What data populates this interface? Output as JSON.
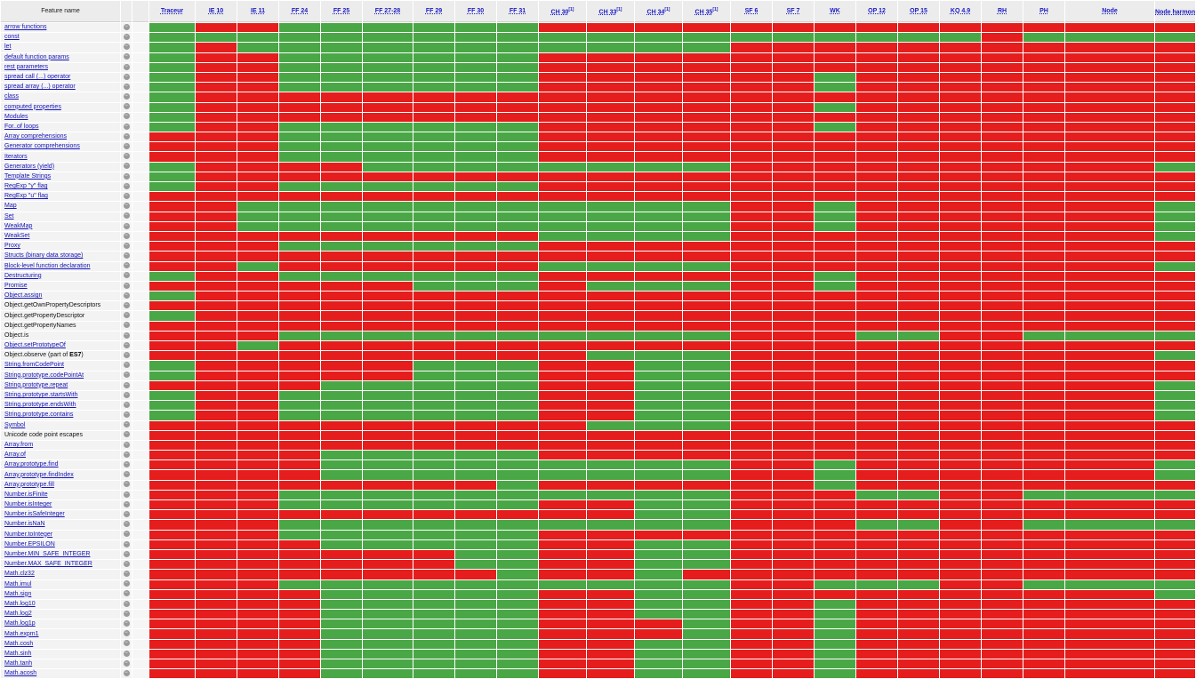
{
  "header": {
    "feature_column": "Feature name",
    "columns": [
      {
        "label": "Traceur",
        "note": ""
      },
      {
        "label": "IE 10",
        "note": ""
      },
      {
        "label": "IE 11",
        "note": ""
      },
      {
        "label": "FF 24",
        "note": ""
      },
      {
        "label": "FF 25",
        "note": ""
      },
      {
        "label": "FF 27-28",
        "note": ""
      },
      {
        "label": "FF 29",
        "note": ""
      },
      {
        "label": "FF 30",
        "note": ""
      },
      {
        "label": "FF 31",
        "note": ""
      },
      {
        "label": "CH 30",
        "note": "[1]"
      },
      {
        "label": "CH 33",
        "note": "[1]"
      },
      {
        "label": "CH 34",
        "note": "[1]"
      },
      {
        "label": "CH 35",
        "note": "[1]"
      },
      {
        "label": "SF 6",
        "note": ""
      },
      {
        "label": "SF 7",
        "note": ""
      },
      {
        "label": "WK",
        "note": ""
      },
      {
        "label": "OP 12",
        "note": ""
      },
      {
        "label": "OP 15",
        "note": ""
      },
      {
        "label": "KQ 4.9",
        "note": ""
      },
      {
        "label": "RH",
        "note": ""
      },
      {
        "label": "PH",
        "note": ""
      },
      {
        "label": "Node",
        "note": ""
      },
      {
        "label": "Node harmony",
        "note": "[2]"
      }
    ]
  },
  "info_icon": "info-circle-icon",
  "colors": {
    "supported": "#4aa746",
    "unsupported": "#e51d1d"
  },
  "rows": [
    {
      "name": "arrow functions",
      "link": true,
      "cells": "ynnyyyyyynnnnnnnnnnnnnn"
    },
    {
      "name": "const",
      "link": true,
      "cells": "yyyyyyyyyyyyyyyyyyynyyy"
    },
    {
      "name": "let",
      "link": true,
      "cells": "ynyyyyyyyyyyynnnnnnnnnn"
    },
    {
      "name": "default function params",
      "link": true,
      "cells": "ynnyyyyyynnnnnnnnnnnnnn"
    },
    {
      "name": "rest parameters",
      "link": true,
      "cells": "ynnyyyyyynnnnnnnnnnnnnn"
    },
    {
      "name": "spread call (...) operator",
      "link": true,
      "cells": "ynnyyyyyynnnnnnynnnnnnn"
    },
    {
      "name": "spread array (...) operator",
      "link": true,
      "cells": "ynnyyyyyynnnnnnynnnnnnn"
    },
    {
      "name": "class",
      "link": true,
      "cells": "ynnnnnnnnnnnnnnnnnnnnnn"
    },
    {
      "name": "computed properties",
      "link": true,
      "cells": "ynnnnnnnnnnnnnnynnnnnnn"
    },
    {
      "name": "Modules",
      "link": true,
      "cells": "ynnnnnnnnnnnnnnnnnnnnnn"
    },
    {
      "name": "For..of loops",
      "link": true,
      "cells": "ynnyyyyyynnnnnnynnnnnnn"
    },
    {
      "name": "Array comprehensions",
      "link": true,
      "cells": "nnnyyyyyynnnnnnnnnnnnnn"
    },
    {
      "name": "Generator comprehensions",
      "link": true,
      "cells": "nnnyyyyyynnnnnnnnnnnnnn"
    },
    {
      "name": "Iterators",
      "link": true,
      "cells": "nnnyyyyyynnnnnnnnnnnnnn"
    },
    {
      "name": "Generators (yield)",
      "link": true,
      "cells": "ynnnnyyyyyyyynnnnnnnnny"
    },
    {
      "name": "Template Strings",
      "link": true,
      "cells": "ynnnnnnnnnnnnnnnnnnnnnn"
    },
    {
      "name": "RegExp \"y\" flag",
      "link": true,
      "cells": "ynnyyyyyynnnnnnnnnnnnnn"
    },
    {
      "name": "RegExp \"u\" flag",
      "link": true,
      "cells": "nnnnnnnnnnnnnnnnnnnnnnn"
    },
    {
      "name": "Map",
      "link": true,
      "cells": "nnyyyyyyyyyyynnynnnnnny"
    },
    {
      "name": "Set",
      "link": true,
      "cells": "nnyyyyyyyyyyynnynnnnnny"
    },
    {
      "name": "WeakMap",
      "link": true,
      "cells": "nnyyyyyyyyyyynnynnnnnny"
    },
    {
      "name": "WeakSet",
      "link": true,
      "cells": "nnnnnnnnnyyyynnnnnnnnny"
    },
    {
      "name": "Proxy",
      "link": true,
      "cells": "nnnyyyyyynnnnnnnnnnnnnn"
    },
    {
      "name": "Structs (binary data storage)",
      "link": true,
      "cells": "nnnnnnnnnnnnnnnnnnnnnnn"
    },
    {
      "name": "Block-level function declaration",
      "link": true,
      "cells": "nnynnnnnnyyyynnnnnnnnny"
    },
    {
      "name": "Destructuring",
      "link": true,
      "cells": "ynnyyyyyynnnnnnynnnnnnn"
    },
    {
      "name": "Promise",
      "link": true,
      "cells": "nnnnnnyyynyyynnynnnnnnn"
    },
    {
      "name": "Object.assign",
      "link": true,
      "cells": "ynnnnnnnnnnnnnnnnnnnnnn"
    },
    {
      "name": "Object.getOwnPropertyDescriptors",
      "link": false,
      "cells": "nnnnnnnnnnnnnnnnnnnnnnn"
    },
    {
      "name": "Object.getPropertyDescriptor",
      "link": false,
      "cells": "ynnnnnnnnnnnnnnnnnnnnnn"
    },
    {
      "name": "Object.getPropertyNames",
      "link": false,
      "cells": "nnnnnnnnnnnnnnnnnnnnnnn"
    },
    {
      "name": "Object.is",
      "link": false,
      "cells": "nnnyyyyyyyyyynnnyynnyyy"
    },
    {
      "name": "Object.setPrototypeOf",
      "link": true,
      "cells": "nnynnnnnnnnnnnnnnnnnnnn"
    },
    {
      "name": "Object.observe (part of ",
      "bold": "ES7",
      "suffix": ")",
      "link": false,
      "cells": "nnnnnnnnnnyyynnnnnnnnny"
    },
    {
      "name": "String.fromCodePoint",
      "link": true,
      "cells": "ynnnnnyyynnyynnnnnnnnnn"
    },
    {
      "name": "String.prototype.codePointAt",
      "link": true,
      "cells": "ynnnnnyyynnyynnnnnnnnnn"
    },
    {
      "name": "String.prototype.repeat",
      "link": true,
      "cells": "nnnnyyyyynnyynnnnnnnnny"
    },
    {
      "name": "String.prototype.startsWith",
      "link": true,
      "cells": "ynnyyyyyynnyynnnnnnnnny"
    },
    {
      "name": "String.prototype.endsWith",
      "link": true,
      "cells": "ynnyyyyyynnyynnnnnnnnny"
    },
    {
      "name": "String.prototype.contains",
      "link": true,
      "cells": "ynnyyyyyynnyynnnnnnnnny"
    },
    {
      "name": "Symbol",
      "link": true,
      "cells": "nnnnnnnnnnyyynnnnnnnnnn"
    },
    {
      "name": "Unicode code point escapes",
      "link": false,
      "cells": "nnnnnnnnnnnnnnnnnnnnnnn"
    },
    {
      "name": "Array.from",
      "link": true,
      "cells": "nnnnnnnnnnnnnnnnnnnnnnn"
    },
    {
      "name": "Array.of",
      "link": true,
      "cells": "nnnnyyyyynnnnnnnnnnnnnn"
    },
    {
      "name": "Array.prototype.find",
      "link": true,
      "cells": "nnnnyyyyyyyyynnynnnnnny"
    },
    {
      "name": "Array.prototype.findIndex",
      "link": true,
      "cells": "nnnnyyyyyyyyynnynnnnnny"
    },
    {
      "name": "Array.prototype.fill",
      "link": true,
      "cells": "nnnnnnnnynnnnnnynnnnnnn"
    },
    {
      "name": "Number.isFinite",
      "link": true,
      "cells": "nnnyyyyyyyyyynnnyynnyyy"
    },
    {
      "name": "Number.isInteger",
      "link": true,
      "cells": "nnnyyyyyynnyynnnnnnnnnn"
    },
    {
      "name": "Number.isSafeInteger",
      "link": true,
      "cells": "nnnnnnnnnnnyynnnnnnnnnn"
    },
    {
      "name": "Number.isNaN",
      "link": true,
      "cells": "nnnyyyyyyyyyynnnyynnyyy"
    },
    {
      "name": "Number.toInteger",
      "link": true,
      "cells": "nnnyyyyyynnnnnnnnnnnnnn"
    },
    {
      "name": "Number.EPSILON",
      "link": true,
      "cells": "nnnnyyyyynnyynnnnnnnnnn"
    },
    {
      "name": "Number.MIN_SAFE_INTEGER",
      "link": true,
      "cells": "nnnnnnnyynnyynnnnnnnnnn"
    },
    {
      "name": "Number.MAX_SAFE_INTEGER",
      "link": true,
      "cells": "nnnnnnnyynnyynnnnnnnnnn"
    },
    {
      "name": "Math.clz32",
      "link": true,
      "cells": "nnnnnnnnynnynnnnnnnnnnn"
    },
    {
      "name": "Math.imul",
      "link": true,
      "cells": "nnnyyyyyyyyyynnyyynnyyy"
    },
    {
      "name": "Math.sign",
      "link": true,
      "cells": "nnnnyyyyynnyynnnnnnnnny"
    },
    {
      "name": "Math.log10",
      "link": true,
      "cells": "nnnnyyyyynnyynnynnnnnnn"
    },
    {
      "name": "Math.log2",
      "link": true,
      "cells": "nnnnyyyyynnyynnynnnnnnn"
    },
    {
      "name": "Math.log1p",
      "link": true,
      "cells": "nnnnyyyyynnnynnynnnnnnn"
    },
    {
      "name": "Math.expm1",
      "link": true,
      "cells": "nnnnyyyyynnnynnynnnnnnn"
    },
    {
      "name": "Math.cosh",
      "link": true,
      "cells": "nnnnyyyyynnyynnynnnnnnn"
    },
    {
      "name": "Math.sinh",
      "link": true,
      "cells": "nnnnyyyyynnyynnynnnnnnn"
    },
    {
      "name": "Math.tanh",
      "link": true,
      "cells": "nnnnyyyyynnyynnynnnnnnn"
    },
    {
      "name": "Math.acosh",
      "link": true,
      "cells": "nnnnyyyyynnyynnynnnnnnn"
    }
  ]
}
